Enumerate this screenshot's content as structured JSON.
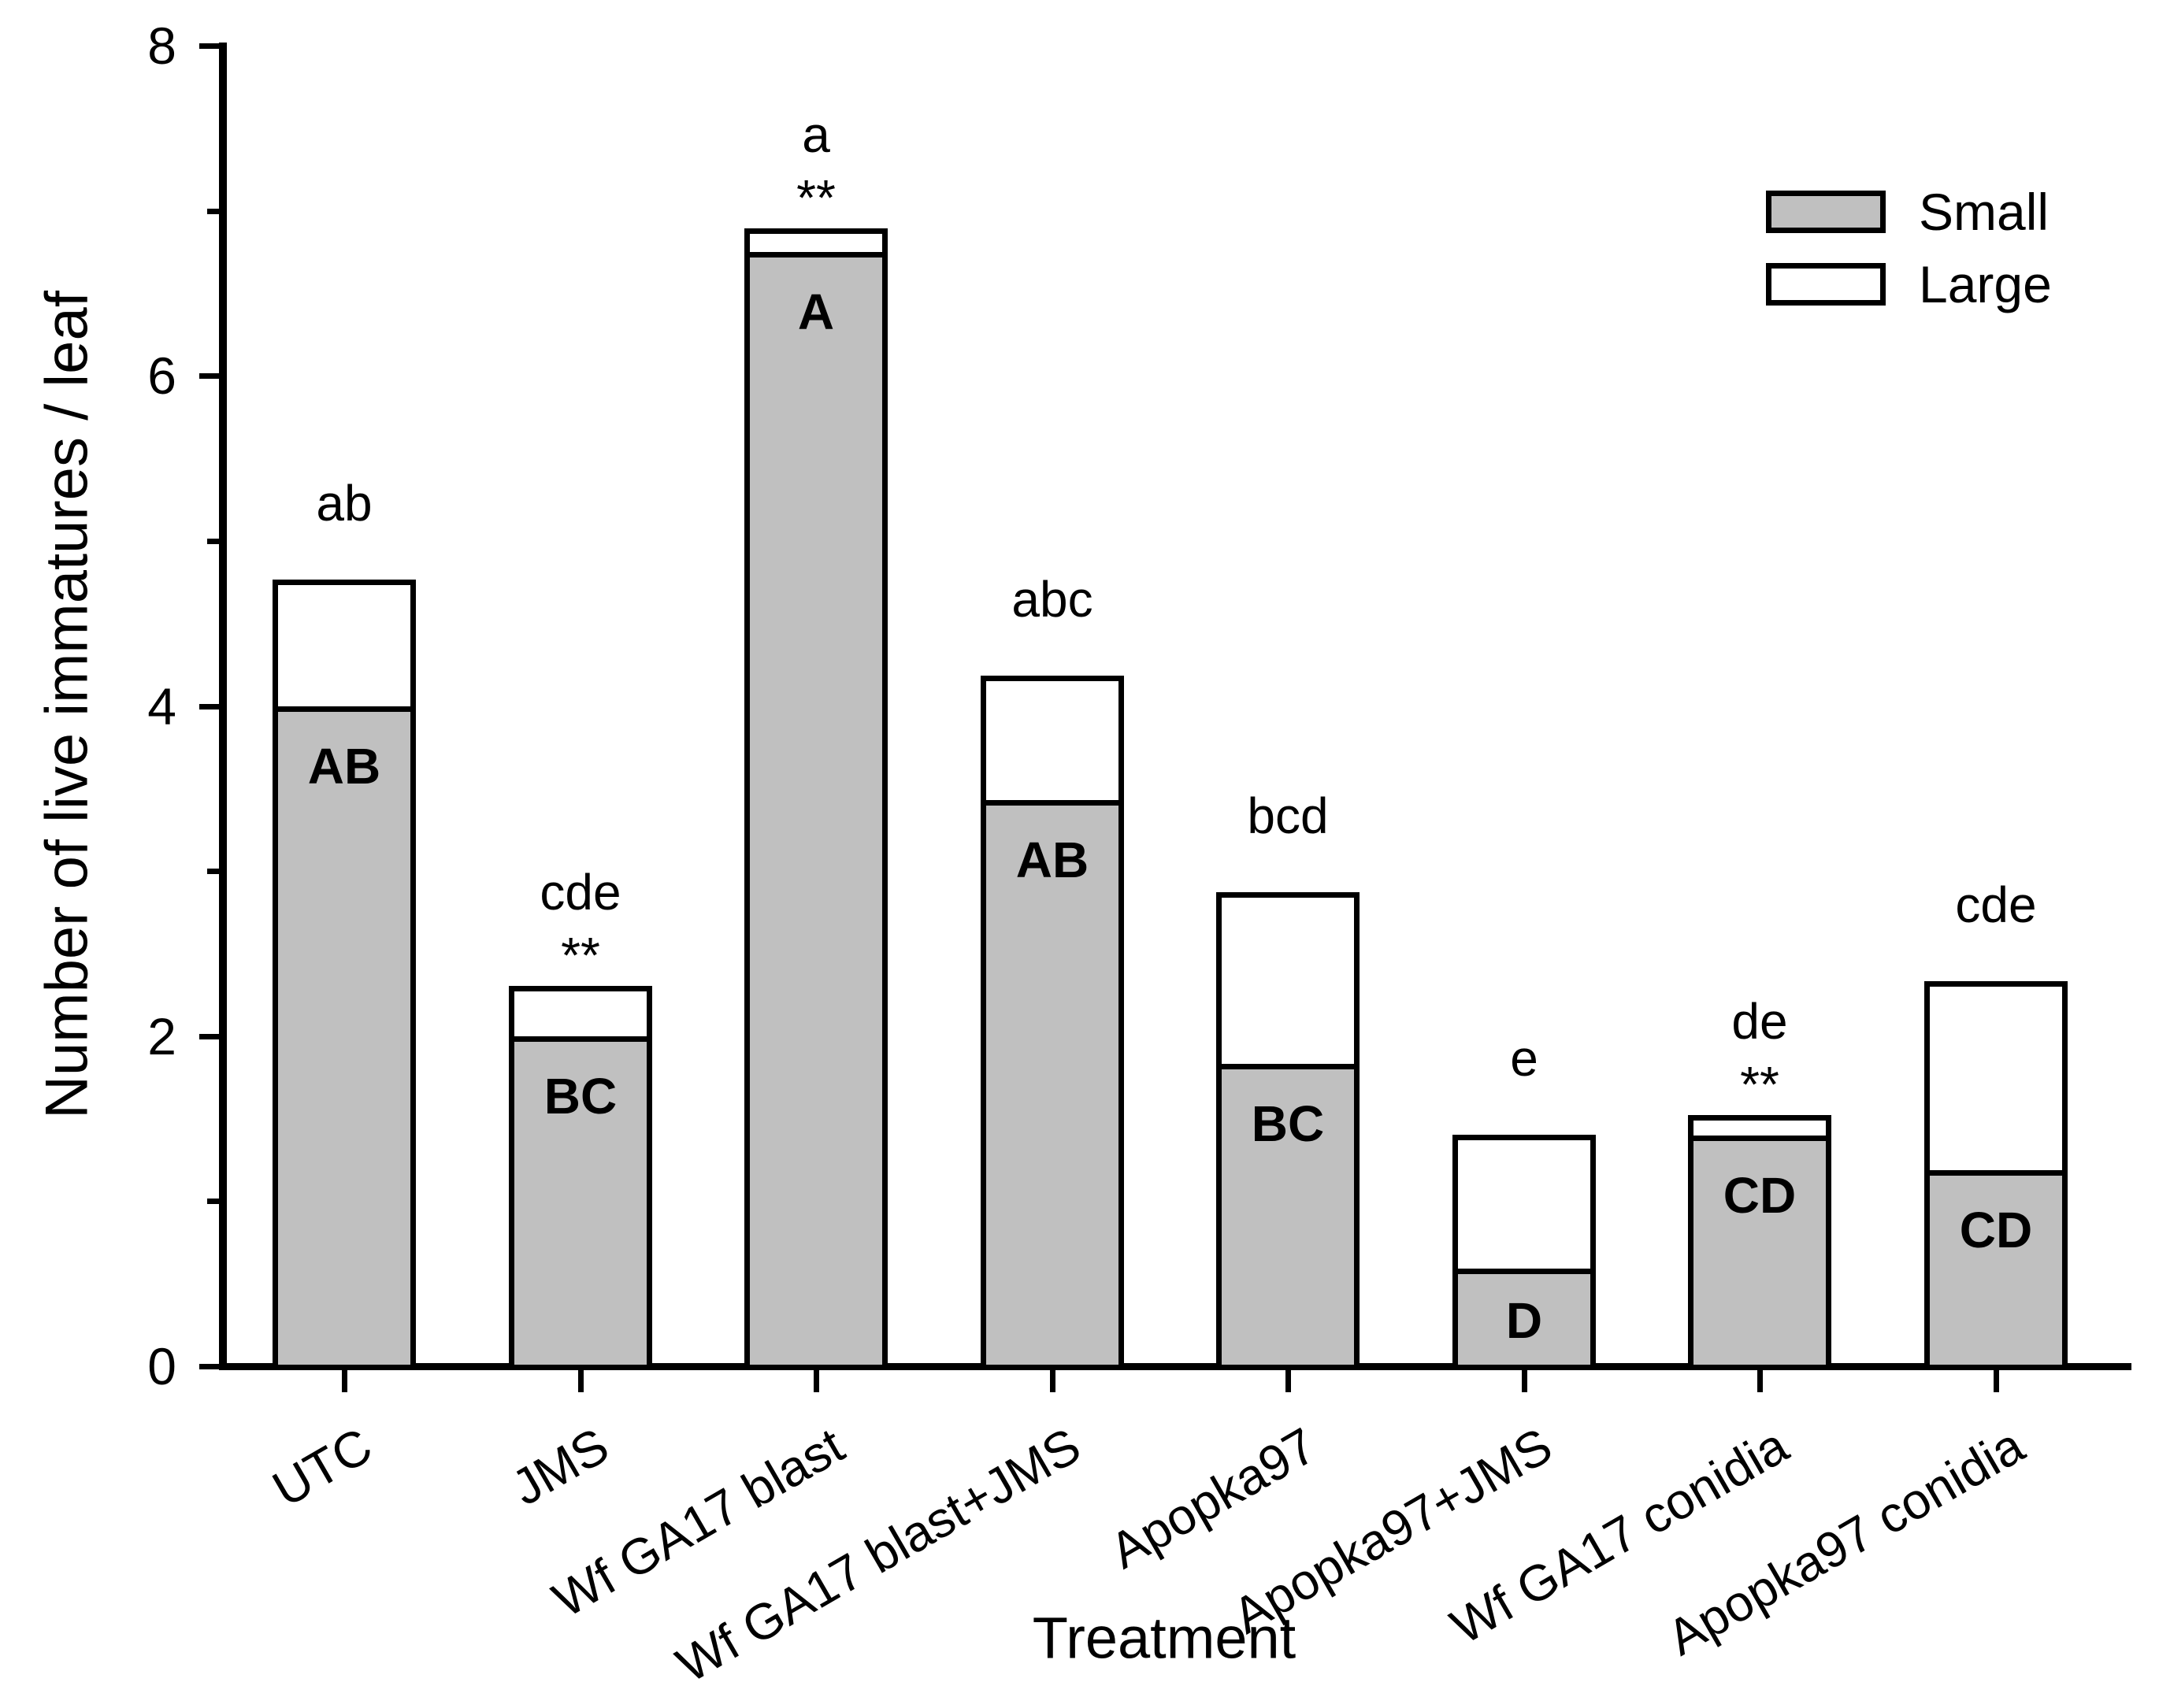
{
  "figure": {
    "background": "#ffffff",
    "bar_fill_small": "#c0c0c0",
    "bar_fill_large": "#ffffff",
    "line_color": "#000000"
  },
  "legend": {
    "position": "top-right",
    "entries": [
      {
        "label": "Small",
        "fill": "#c0c0c0"
      },
      {
        "label": "Large",
        "fill": "#ffffff"
      }
    ]
  },
  "chart_data": {
    "type": "bar",
    "stacked": true,
    "title": "",
    "xlabel": "Treatment",
    "ylabel": "Number of live immatures / leaf",
    "ylim": [
      0,
      8
    ],
    "yticks_major": [
      0,
      2,
      4,
      6,
      8
    ],
    "yticks_minor": [
      1,
      3,
      5,
      7
    ],
    "grid": false,
    "legend_position": "top-right",
    "categories": [
      "UTC",
      "JMS",
      "Wf GA17 blast",
      "Wf GA17 blast+JMS",
      "Apopka97",
      "Apopka97+JMS",
      "Wf GA17 conidia",
      "Apopka97 conidia"
    ],
    "series": [
      {
        "name": "Small",
        "fill": "#c0c0c0",
        "values": [
          4.0,
          2.0,
          6.75,
          3.43,
          1.83,
          0.59,
          1.4,
          1.19
        ]
      },
      {
        "name": "Large",
        "fill": "#ffffff",
        "values": [
          0.75,
          0.29,
          0.13,
          0.74,
          1.03,
          0.8,
          0.11,
          1.13
        ]
      }
    ],
    "annotations": [
      {
        "above": "ab",
        "stars": "",
        "inside": "AB"
      },
      {
        "above": "cde",
        "stars": "**",
        "inside": "BC"
      },
      {
        "above": "a",
        "stars": "**",
        "inside": "A"
      },
      {
        "above": "abc",
        "stars": "",
        "inside": "AB"
      },
      {
        "above": "bcd",
        "stars": "",
        "inside": "BC"
      },
      {
        "above": "e",
        "stars": "",
        "inside": "D"
      },
      {
        "above": "de",
        "stars": "**",
        "inside": "CD"
      },
      {
        "above": "cde",
        "stars": "",
        "inside": "CD"
      }
    ]
  }
}
